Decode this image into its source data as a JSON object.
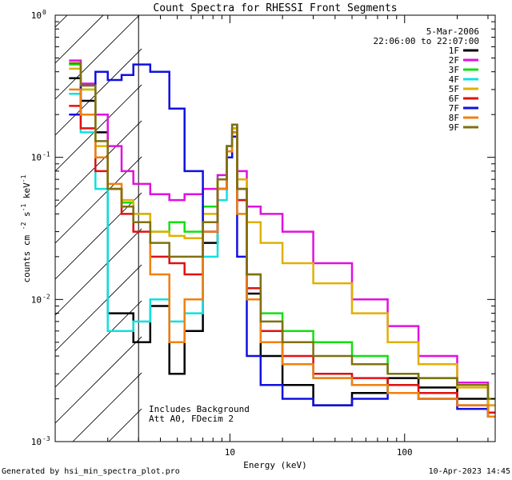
{
  "chart_data": {
    "type": "line",
    "title": "Count Spectra for RHESSI Front Segments",
    "xlabel": "Energy (keV)",
    "ylabel": "counts cm^-2 s^-1 keV^-1",
    "x_scale": "log",
    "y_scale": "log",
    "xlim": [
      1.0,
      330.0
    ],
    "ylim": [
      0.001,
      1.0
    ],
    "x_ticks": [
      {
        "value": 10,
        "label": "10"
      },
      {
        "value": 100,
        "label": "100"
      }
    ],
    "y_ticks": [
      {
        "value": 0.001,
        "mantissa": "10",
        "exponent": "-3"
      },
      {
        "value": 0.01,
        "mantissa": "10",
        "exponent": "-2"
      },
      {
        "value": 0.1,
        "mantissa": "10",
        "exponent": "-1"
      },
      {
        "value": 1.0,
        "mantissa": "10",
        "exponent": "0"
      }
    ],
    "attenuator_threshold_keV": 3.0,
    "date_label": "5-Mar-2006",
    "time_label": "22:06:00 to 22:07:00",
    "annotation": [
      "Includes Background",
      "Att A0, FDecim 2"
    ],
    "legend_position": "top-right",
    "series": [
      {
        "name": "1F",
        "color": "#000000",
        "x": [
          1.2,
          1.4,
          1.7,
          2.0,
          2.4,
          2.8,
          3.5,
          4.5,
          5.5,
          7.0,
          8.5,
          9.6,
          10.3,
          11.0,
          12.5,
          15.0,
          20.0,
          30.0,
          50.0,
          80.0,
          120.0,
          200.0,
          300.0
        ],
        "values": [
          0.36,
          0.25,
          0.15,
          0.008,
          0.008,
          0.005,
          0.009,
          0.003,
          0.006,
          0.025,
          0.06,
          0.12,
          0.17,
          0.06,
          0.011,
          0.004,
          0.0025,
          0.0018,
          0.0022,
          0.0028,
          0.0024,
          0.002,
          0.0016
        ]
      },
      {
        "name": "2F",
        "color": "#e010e0",
        "x": [
          1.2,
          1.4,
          1.7,
          2.0,
          2.4,
          2.8,
          3.5,
          4.5,
          5.5,
          7.0,
          8.5,
          9.6,
          10.3,
          11.0,
          12.5,
          15.0,
          20.0,
          30.0,
          50.0,
          80.0,
          120.0,
          200.0,
          300.0
        ],
        "values": [
          0.48,
          0.33,
          0.2,
          0.12,
          0.08,
          0.065,
          0.055,
          0.05,
          0.055,
          0.06,
          0.075,
          0.11,
          0.16,
          0.08,
          0.045,
          0.04,
          0.03,
          0.018,
          0.01,
          0.0065,
          0.004,
          0.0026,
          0.0018
        ]
      },
      {
        "name": "3F",
        "color": "#10e010",
        "x": [
          1.2,
          1.4,
          1.7,
          2.0,
          2.4,
          2.8,
          3.5,
          4.5,
          5.5,
          7.0,
          8.5,
          9.6,
          10.3,
          11.0,
          12.5,
          15.0,
          20.0,
          30.0,
          50.0,
          80.0,
          120.0,
          200.0,
          300.0
        ],
        "values": [
          0.45,
          0.3,
          0.1,
          0.06,
          0.048,
          0.04,
          0.03,
          0.035,
          0.03,
          0.045,
          0.07,
          0.12,
          0.16,
          0.05,
          0.015,
          0.008,
          0.006,
          0.005,
          0.004,
          0.003,
          0.0028,
          0.0025,
          0.002
        ]
      },
      {
        "name": "4F",
        "color": "#10e0e0",
        "x": [
          1.2,
          1.4,
          1.7,
          2.0,
          2.4,
          2.8,
          3.5,
          4.5,
          5.5,
          7.0,
          8.5,
          9.6,
          10.3,
          11.0,
          12.5,
          15.0,
          20.0,
          30.0,
          50.0,
          80.0,
          120.0,
          200.0,
          300.0
        ],
        "values": [
          0.28,
          0.15,
          0.06,
          0.006,
          0.006,
          0.007,
          0.01,
          0.007,
          0.008,
          0.02,
          0.05,
          0.11,
          0.15,
          0.05,
          0.01,
          0.005,
          0.0035,
          0.0028,
          0.0025,
          0.0022,
          0.002,
          0.0018,
          0.0015
        ]
      },
      {
        "name": "5F",
        "color": "#e0b000",
        "x": [
          1.2,
          1.4,
          1.7,
          2.0,
          2.4,
          2.8,
          3.5,
          4.5,
          5.5,
          7.0,
          8.5,
          9.6,
          10.3,
          11.0,
          12.5,
          15.0,
          20.0,
          30.0,
          50.0,
          80.0,
          120.0,
          200.0,
          300.0
        ],
        "values": [
          0.42,
          0.3,
          0.12,
          0.06,
          0.05,
          0.04,
          0.03,
          0.028,
          0.027,
          0.04,
          0.07,
          0.11,
          0.16,
          0.07,
          0.035,
          0.025,
          0.018,
          0.013,
          0.008,
          0.005,
          0.0035,
          0.0024,
          0.0018
        ]
      },
      {
        "name": "6F",
        "color": "#e01010",
        "x": [
          1.2,
          1.4,
          1.7,
          2.0,
          2.4,
          2.8,
          3.5,
          4.5,
          5.5,
          7.0,
          8.5,
          9.6,
          10.3,
          11.0,
          12.5,
          15.0,
          20.0,
          30.0,
          50.0,
          80.0,
          120.0,
          200.0,
          300.0
        ],
        "values": [
          0.23,
          0.16,
          0.08,
          0.06,
          0.04,
          0.03,
          0.02,
          0.018,
          0.015,
          0.03,
          0.06,
          0.11,
          0.15,
          0.05,
          0.012,
          0.006,
          0.004,
          0.003,
          0.0028,
          0.0025,
          0.0022,
          0.0018,
          0.0016
        ]
      },
      {
        "name": "7F",
        "color": "#1010e0",
        "x": [
          1.2,
          1.4,
          1.7,
          2.0,
          2.4,
          2.8,
          3.5,
          4.5,
          5.5,
          7.0,
          8.5,
          9.6,
          10.3,
          11.0,
          12.5,
          15.0,
          20.0,
          30.0,
          50.0,
          80.0,
          120.0,
          200.0,
          300.0
        ],
        "values": [
          0.2,
          0.32,
          0.4,
          0.35,
          0.38,
          0.45,
          0.4,
          0.22,
          0.08,
          0.03,
          0.06,
          0.1,
          0.14,
          0.02,
          0.004,
          0.0025,
          0.002,
          0.0018,
          0.002,
          0.0022,
          0.002,
          0.0017,
          0.0015
        ]
      },
      {
        "name": "8F",
        "color": "#f08010",
        "x": [
          1.2,
          1.4,
          1.7,
          2.0,
          2.4,
          2.8,
          3.5,
          4.5,
          5.5,
          7.0,
          8.5,
          9.6,
          10.3,
          11.0,
          12.5,
          15.0,
          20.0,
          30.0,
          50.0,
          80.0,
          120.0,
          200.0,
          300.0
        ],
        "values": [
          0.3,
          0.2,
          0.1,
          0.065,
          0.045,
          0.035,
          0.015,
          0.005,
          0.01,
          0.03,
          0.06,
          0.11,
          0.15,
          0.04,
          0.01,
          0.005,
          0.0035,
          0.0028,
          0.0025,
          0.0022,
          0.002,
          0.0018,
          0.0015
        ]
      },
      {
        "name": "9F",
        "color": "#807010",
        "x": [
          1.2,
          1.4,
          1.7,
          2.0,
          2.4,
          2.8,
          3.5,
          4.5,
          5.5,
          7.0,
          8.5,
          9.6,
          10.3,
          11.0,
          12.5,
          15.0,
          20.0,
          30.0,
          50.0,
          80.0,
          120.0,
          200.0,
          300.0
        ],
        "values": [
          0.46,
          0.32,
          0.13,
          0.06,
          0.045,
          0.035,
          0.025,
          0.02,
          0.02,
          0.035,
          0.07,
          0.12,
          0.17,
          0.06,
          0.015,
          0.007,
          0.005,
          0.004,
          0.0035,
          0.003,
          0.0028,
          0.0025,
          0.002
        ]
      }
    ]
  },
  "footer": {
    "generator": "Generated by hsi_min_spectra_plot.pro",
    "timestamp": "10-Apr-2023 14:45"
  }
}
